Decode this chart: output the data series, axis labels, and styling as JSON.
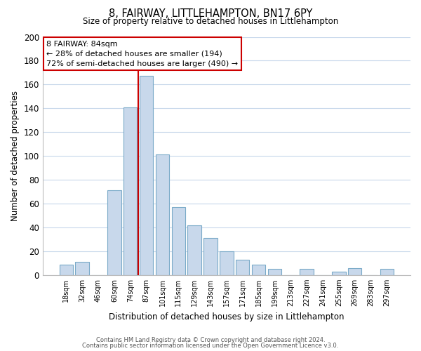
{
  "title": "8, FAIRWAY, LITTLEHAMPTON, BN17 6PY",
  "subtitle": "Size of property relative to detached houses in Littlehampton",
  "xlabel": "Distribution of detached houses by size in Littlehampton",
  "ylabel": "Number of detached properties",
  "bar_labels": [
    "18sqm",
    "32sqm",
    "46sqm",
    "60sqm",
    "74sqm",
    "87sqm",
    "101sqm",
    "115sqm",
    "129sqm",
    "143sqm",
    "157sqm",
    "171sqm",
    "185sqm",
    "199sqm",
    "213sqm",
    "227sqm",
    "241sqm",
    "255sqm",
    "269sqm",
    "283sqm",
    "297sqm"
  ],
  "bar_values": [
    9,
    11,
    0,
    71,
    141,
    167,
    101,
    57,
    42,
    31,
    20,
    13,
    9,
    5,
    0,
    5,
    0,
    3,
    6,
    0,
    5
  ],
  "bar_color": "#c8d8eb",
  "bar_edge_color": "#7aaac8",
  "highlight_line_color": "#cc0000",
  "ylim": [
    0,
    200
  ],
  "yticks": [
    0,
    20,
    40,
    60,
    80,
    100,
    120,
    140,
    160,
    180,
    200
  ],
  "annotation_title": "8 FAIRWAY: 84sqm",
  "annotation_line1": "← 28% of detached houses are smaller (194)",
  "annotation_line2": "72% of semi-detached houses are larger (490) →",
  "annotation_box_color": "#ffffff",
  "annotation_box_edge": "#cc0000",
  "footer1": "Contains HM Land Registry data © Crown copyright and database right 2024.",
  "footer2": "Contains public sector information licensed under the Open Government Licence v3.0.",
  "background_color": "#ffffff",
  "grid_color": "#c8d8eb"
}
